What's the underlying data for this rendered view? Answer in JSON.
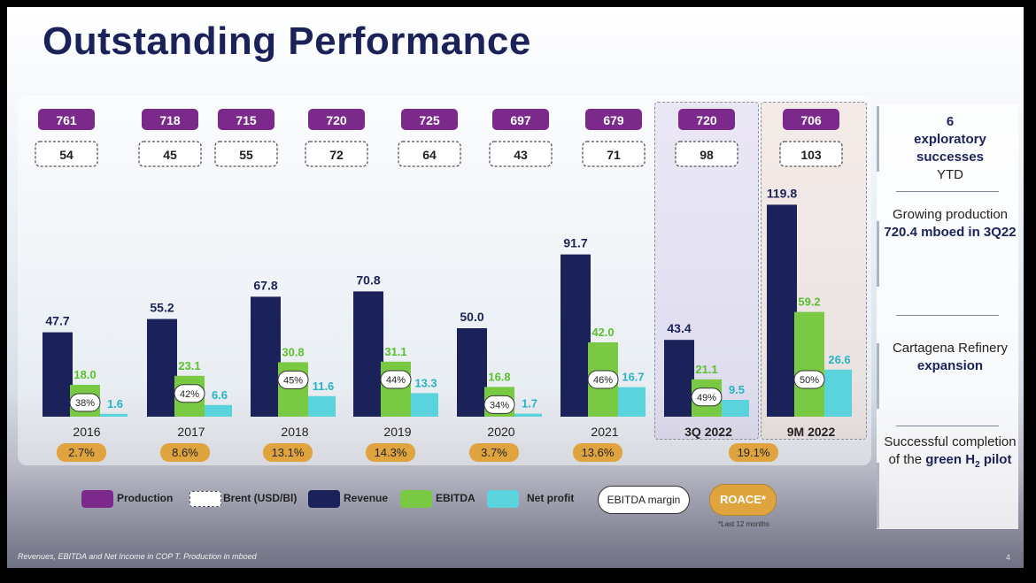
{
  "title": "Outstanding Performance",
  "chart_data": {
    "type": "bar",
    "categories": [
      "2016",
      "2017",
      "2018",
      "2019",
      "2020",
      "2021",
      "3Q 2022",
      "9M 2022"
    ],
    "series": [
      {
        "name": "Revenue",
        "values": [
          47.7,
          55.2,
          67.8,
          70.8,
          50.0,
          91.7,
          43.4,
          119.8
        ]
      },
      {
        "name": "EBITDA",
        "values": [
          18.0,
          23.1,
          30.8,
          31.1,
          16.8,
          42.0,
          21.1,
          59.2
        ]
      },
      {
        "name": "Net profit",
        "values": [
          1.6,
          6.6,
          11.6,
          13.3,
          1.7,
          16.7,
          9.5,
          26.6
        ]
      }
    ],
    "revenue_labels": [
      "47.7",
      "55.2",
      "67.8",
      "70.8",
      "50.0",
      "91.7",
      "43.4",
      "119.8"
    ],
    "ebitda_labels": [
      "18.0",
      "23.1",
      "30.8",
      "31.1",
      "16.8",
      "42.0",
      "21.1",
      "59.2"
    ],
    "netprofit_labels": [
      "1.6",
      "6.6",
      "11.6",
      "13.3",
      "1.7",
      "16.7",
      "9.5",
      "26.6"
    ],
    "production": [
      "761",
      "718",
      "715",
      "720",
      "725",
      "697",
      "679",
      "720",
      "706"
    ],
    "brent": [
      "54",
      "45",
      "55",
      "72",
      "64",
      "43",
      "71",
      "98",
      "103"
    ],
    "ebitda_margin": [
      "38%",
      "42%",
      "45%",
      "44%",
      "34%",
      "46%",
      "49%",
      "50%"
    ],
    "roace": [
      "2.7%",
      "8.6%",
      "13.1%",
      "14.3%",
      "3.7%",
      "13.6%",
      "19.1%"
    ],
    "ylim": [
      0,
      125
    ],
    "title": "Outstanding Performance",
    "colors": {
      "production": "#7b2a8c",
      "revenue": "#1b2259",
      "ebitda": "#7ac943",
      "netprofit": "#5bd3dc",
      "roace": "#e0a43e",
      "bar_label": "#1b2259",
      "ebitda_label": "#5ac02b",
      "netprofit_label": "#27b3c4"
    }
  },
  "legend": {
    "production": "Production",
    "brent": "Brent (USD/Bl)",
    "revenue": "Revenue",
    "ebitda": "EBITDA",
    "netprofit": "Net profit",
    "margin": "EBITDA margin",
    "roace": "ROACE*"
  },
  "roace_note": "*Last 12 months",
  "footnote": "Revenues, EBITDA and Net Income in COP T. Production in mboed",
  "page_number": "4",
  "side": {
    "s1_line1": "6",
    "s1_line2": "exploratory successes",
    "s1_line3": "YTD",
    "s2_line1": "Growing production",
    "s2_line2": "720.4 mboed in 3Q22",
    "s3_line1": "Cartagena Refinery",
    "s3_line2": "expansion",
    "s4_line1": "Successful completion of the",
    "s4_line2": "green H",
    "s4_sub": "2",
    "s4_line3": "pilot"
  }
}
